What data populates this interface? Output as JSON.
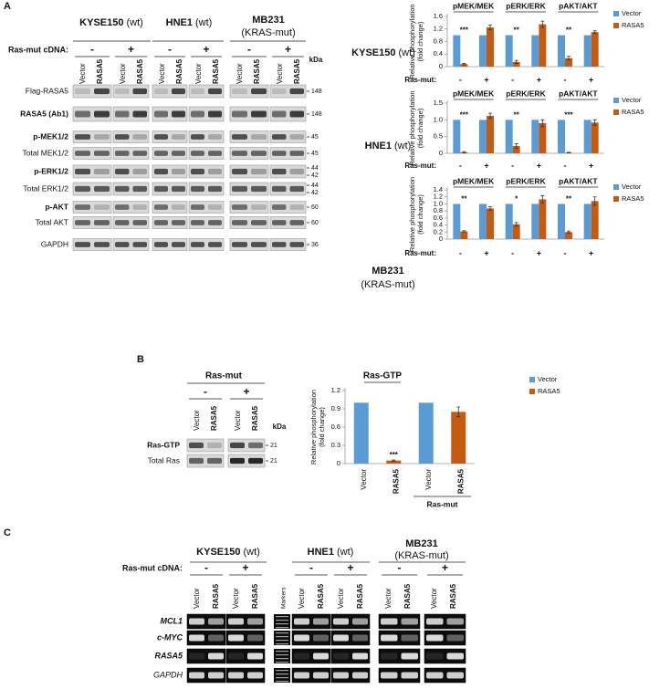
{
  "panels": [
    "A",
    "B",
    "C"
  ],
  "panel_a_blot": {
    "cell_lines": [
      {
        "name": "KYSE150",
        "note": "(wt)"
      },
      {
        "name": "HNE1",
        "note": "(wt)"
      },
      {
        "name": "MB231",
        "note": "(KRAS-mut)"
      }
    ],
    "condition": "Ras-mut cDNA:",
    "signs": [
      "-",
      "+"
    ],
    "lanes": [
      "Vector",
      "RASA5"
    ],
    "kda": "kDa",
    "rows": [
      {
        "label": "Flag-RASA5",
        "bold": false,
        "kda": [
          "148"
        ]
      },
      {
        "label": "RASA5 (Ab1)",
        "bold": true,
        "kda": [
          "148"
        ]
      },
      {
        "label": "p-MEK1/2",
        "bold": true,
        "kda": [
          "45"
        ]
      },
      {
        "label": "Total MEK1/2",
        "bold": false,
        "kda": [
          "45"
        ]
      },
      {
        "label": "p-ERK1/2",
        "bold": true,
        "kda": [
          "44",
          "42"
        ]
      },
      {
        "label": "Total ERK1/2",
        "bold": false,
        "kda": [
          "44",
          "42"
        ]
      },
      {
        "label": "p-AKT",
        "bold": true,
        "kda": [
          "60"
        ]
      },
      {
        "label": "Total AKT",
        "bold": false,
        "kda": [
          "60"
        ]
      },
      {
        "label": "GAPDH",
        "bold": false,
        "kda": [
          "36"
        ]
      }
    ]
  },
  "chart_data": [
    {
      "type": "bar",
      "title": "KYSE150",
      "subtitle": "(wt)",
      "ylabel": "Relative phosphorylation",
      "ylabel_note": "(fold change)",
      "groups": [
        "pMEK/MEK",
        "pERK/ERK",
        "pAKT/AKT"
      ],
      "categories": [
        "-",
        "+",
        "-",
        "+",
        "-",
        "+"
      ],
      "xlabel": "Ras-mut:",
      "series": [
        {
          "name": "Vector",
          "color": "#5b9bd5",
          "values": [
            1,
            1,
            1,
            1,
            1,
            1
          ]
        },
        {
          "name": "RASA5",
          "color": "#c55a11",
          "values": [
            0.08,
            1.25,
            0.15,
            1.35,
            0.27,
            1.1
          ],
          "errors": [
            0.02,
            0.08,
            0.05,
            0.1,
            0.06,
            0.04
          ]
        }
      ],
      "significance": [
        "***",
        null,
        "**",
        null,
        "**",
        null
      ],
      "ylim": [
        0,
        1.6
      ],
      "yticks": [
        0,
        0.4,
        0.8,
        1.2,
        1.6
      ],
      "legend": "top-right"
    },
    {
      "type": "bar",
      "title": "HNE1",
      "subtitle": "(wt)",
      "ylabel": "Relative phosphorylation",
      "ylabel_note": "(fold change)",
      "groups": [
        "pMEK/MEK",
        "pERK/ERK",
        "pAKT/AKT"
      ],
      "categories": [
        "-",
        "+",
        "-",
        "+",
        "-",
        "+"
      ],
      "xlabel": "Ras-mut:",
      "series": [
        {
          "name": "Vector",
          "color": "#5b9bd5",
          "values": [
            1,
            1,
            1,
            1,
            1,
            1
          ]
        },
        {
          "name": "RASA5",
          "color": "#c55a11",
          "values": [
            0.03,
            1.12,
            0.22,
            0.9,
            0.02,
            0.92
          ],
          "errors": [
            0.02,
            0.08,
            0.07,
            0.1,
            0.01,
            0.08
          ]
        }
      ],
      "significance": [
        "***",
        null,
        "**",
        null,
        "***",
        null
      ],
      "ylim": [
        0,
        1.5
      ],
      "yticks": [
        0,
        0.5,
        {
          "value": 1,
          "label": "1.0"
        },
        1.5
      ],
      "legend": "top-right"
    },
    {
      "type": "bar",
      "title": "MB231",
      "subtitle": "(KRAS-mut)",
      "ylabel": "Relative phosphorylation",
      "ylabel_note": "(fold change)",
      "groups": [
        "pMEK/MEK",
        "pERK/ERK",
        "pAKT/AKT"
      ],
      "categories": [
        "-",
        "+",
        "-",
        "+",
        "-",
        "+"
      ],
      "xlabel": "Ras-mut:",
      "series": [
        {
          "name": "Vector",
          "color": "#5b9bd5",
          "values": [
            1,
            1,
            1,
            1,
            1,
            1
          ]
        },
        {
          "name": "RASA5",
          "color": "#c55a11",
          "values": [
            0.22,
            0.87,
            0.42,
            1.13,
            0.2,
            1.08
          ],
          "errors": [
            0.02,
            0.05,
            0.05,
            0.1,
            0.03,
            0.12
          ]
        }
      ],
      "significance": [
        "**",
        null,
        "*",
        null,
        "**",
        null
      ],
      "ylim": [
        0,
        1.4
      ],
      "yticks": [
        0,
        0.2,
        0.4,
        0.6,
        0.8,
        {
          "value": 1,
          "label": "1.0"
        },
        1.2,
        1.4
      ],
      "legend": "top-right"
    },
    {
      "type": "bar",
      "title": "Ras-GTP",
      "ylabel": "Relative phosphorylation",
      "ylabel_note": "(fold change)",
      "categories": [
        "Vector",
        "RASA5",
        "Vector",
        "RASA5"
      ],
      "group_label": "Ras-mut",
      "series": [
        {
          "name": "Vector",
          "color": "#5b9bd5",
          "values": [
            1,
            null,
            1,
            null
          ]
        },
        {
          "name": "RASA5",
          "color": "#c55a11",
          "values": [
            null,
            0.05,
            null,
            0.85
          ],
          "errors": [
            null,
            0.01,
            null,
            0.08
          ]
        }
      ],
      "significance": [
        null,
        "***",
        null,
        null
      ],
      "ylim": [
        0,
        1.2
      ],
      "yticks": [
        0,
        0.3,
        0.6,
        0.9,
        1.2
      ],
      "legend": "top-right"
    }
  ],
  "panel_b_blot": {
    "header": "Ras-mut",
    "signs": [
      "-",
      "+"
    ],
    "lanes": [
      "Vector",
      "RASA5"
    ],
    "kda": "kDa",
    "rows": [
      {
        "label": "Ras-GTP",
        "bold": true,
        "kda": [
          "21"
        ]
      },
      {
        "label": "Total Ras",
        "bold": false,
        "kda": [
          "21"
        ]
      }
    ]
  },
  "panel_c_gel": {
    "cell_lines": [
      {
        "name": "KYSE150",
        "note": "(wt)"
      },
      {
        "name": "HNE1",
        "note": "(wt)"
      },
      {
        "name": "MB231",
        "note": "(KRAS-mut)"
      }
    ],
    "condition": "Ras-mut cDNA:",
    "signs": [
      "-",
      "+"
    ],
    "lanes": [
      "Vector",
      "RASA5"
    ],
    "marker_lane": "Markers",
    "rows": [
      {
        "label": "MCL1",
        "bold": true
      },
      {
        "label": "c-MYC",
        "bold": true
      },
      {
        "label": "RASA5",
        "bold": true
      },
      {
        "label": "GAPDH",
        "bold": false
      }
    ]
  }
}
